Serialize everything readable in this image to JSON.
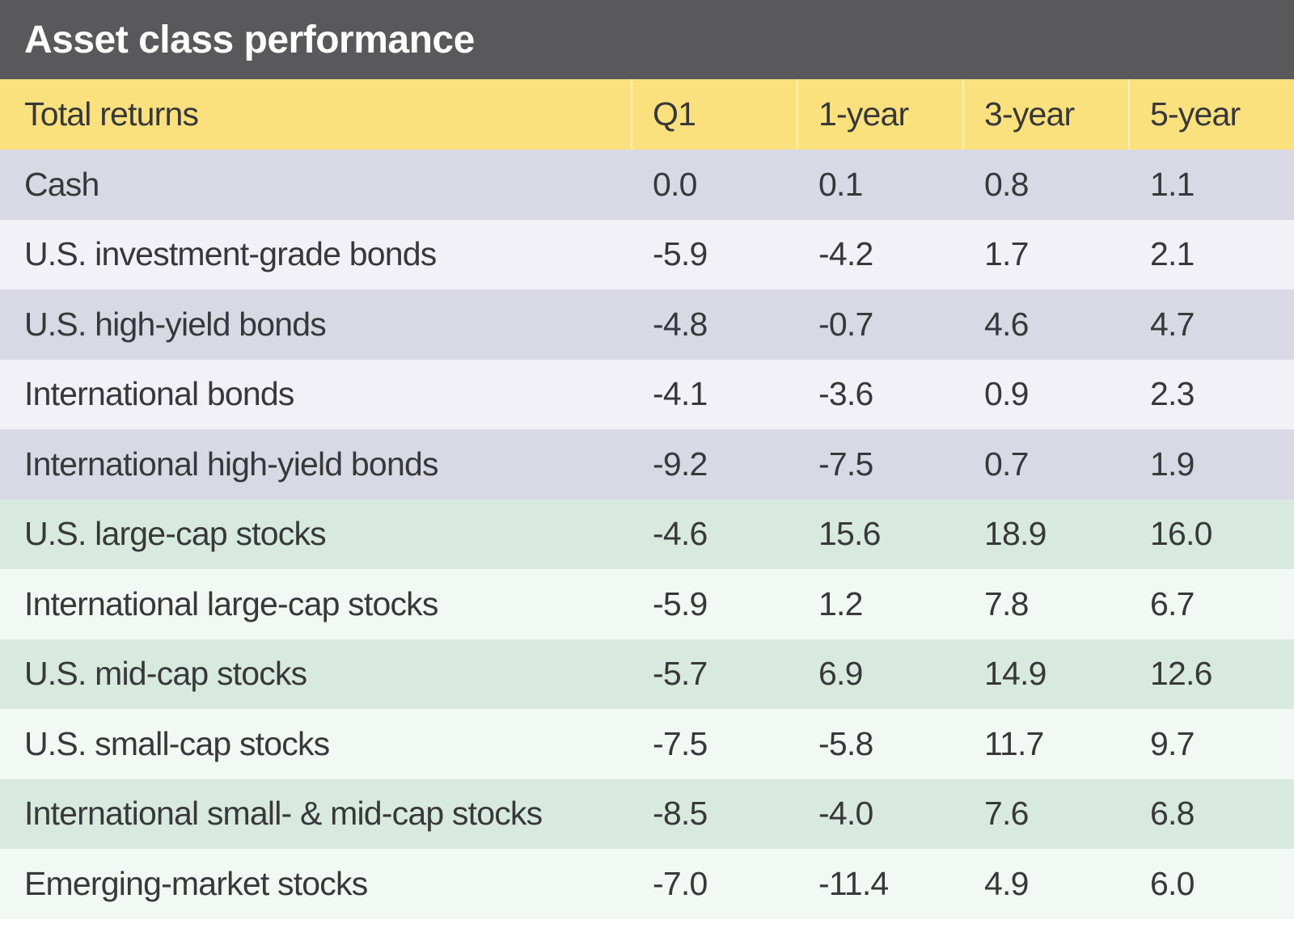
{
  "colors": {
    "title_bar_bg": "#59595C",
    "title_text": "#FFFFFF",
    "header_bg": "#FBE17E",
    "header_divider": "#FDF2BC",
    "bond_row_odd": "#D9D9E5",
    "bond_row_even": "#F2F1F7",
    "stock_row_odd": "#D8EADF",
    "stock_row_even": "#F2F8F4",
    "body_text": "#38383A"
  },
  "chart_data": {
    "type": "table",
    "title": "Asset class performance",
    "corner_label": "Total returns",
    "columns": [
      "Q1",
      "1-year",
      "3-year",
      "5-year"
    ],
    "rows": [
      {
        "label": "Cash",
        "group": "bonds",
        "values": [
          "0.0",
          "0.1",
          "0.8",
          "1.1"
        ]
      },
      {
        "label": "U.S. investment-grade bonds",
        "group": "bonds",
        "values": [
          "-5.9",
          "-4.2",
          "1.7",
          "2.1"
        ]
      },
      {
        "label": "U.S. high-yield bonds",
        "group": "bonds",
        "values": [
          "-4.8",
          "-0.7",
          "4.6",
          "4.7"
        ]
      },
      {
        "label": "International bonds",
        "group": "bonds",
        "values": [
          "-4.1",
          "-3.6",
          "0.9",
          "2.3"
        ]
      },
      {
        "label": "International high-yield bonds",
        "group": "bonds",
        "values": [
          "-9.2",
          "-7.5",
          "0.7",
          "1.9"
        ]
      },
      {
        "label": "U.S. large-cap stocks",
        "group": "stocks",
        "values": [
          "-4.6",
          "15.6",
          "18.9",
          "16.0"
        ]
      },
      {
        "label": "International large-cap stocks",
        "group": "stocks",
        "values": [
          "-5.9",
          "1.2",
          "7.8",
          "6.7"
        ]
      },
      {
        "label": "U.S. mid-cap stocks",
        "group": "stocks",
        "values": [
          "-5.7",
          "6.9",
          "14.9",
          "12.6"
        ]
      },
      {
        "label": "U.S. small-cap stocks",
        "group": "stocks",
        "values": [
          "-7.5",
          "-5.8",
          "11.7",
          "9.7"
        ]
      },
      {
        "label": "International small- & mid-cap stocks",
        "group": "stocks",
        "values": [
          "-8.5",
          "-4.0",
          "7.6",
          "6.8"
        ]
      },
      {
        "label": "Emerging-market stocks",
        "group": "stocks",
        "values": [
          "-7.0",
          "-11.4",
          "4.9",
          "6.0"
        ]
      }
    ]
  }
}
